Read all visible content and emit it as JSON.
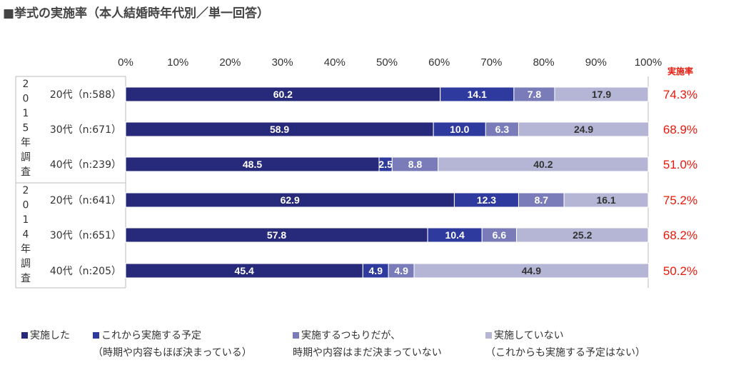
{
  "title": "■挙式の実施率（本人結婚時年代別／単一回答）",
  "rate_header": "実施率",
  "chart_data": {
    "type": "bar",
    "orientation": "horizontal",
    "stacked": true,
    "xlim": [
      0,
      100
    ],
    "ticks": [
      "0%",
      "10%",
      "20%",
      "30%",
      "40%",
      "50%",
      "60%",
      "70%",
      "80%",
      "90%",
      "100%"
    ],
    "groups": [
      {
        "label": [
          "2",
          "0",
          "1",
          "5",
          "年",
          "調",
          "査"
        ],
        "rows": [
          0,
          1,
          2
        ]
      },
      {
        "label": [
          "2",
          "0",
          "1",
          "4",
          "年",
          "調",
          "査"
        ],
        "rows": [
          3,
          4,
          5
        ]
      }
    ],
    "categories": [
      "20代（n:588）",
      "30代（n:671）",
      "40代（n:239）",
      "20代（n:641）",
      "30代（n:651）",
      "40代（n:205）"
    ],
    "series": [
      {
        "name": "実施した",
        "sub": "",
        "color": "#272a7a",
        "label_color": "#ffffff",
        "values": [
          60.2,
          58.9,
          48.5,
          62.9,
          57.8,
          45.4
        ]
      },
      {
        "name": "これから実施する予定",
        "sub": "（時期や内容もほぼ決まっている）",
        "color": "#2f3a9e",
        "label_color": "#ffffff",
        "values": [
          14.1,
          10.0,
          2.5,
          12.3,
          10.4,
          4.9
        ]
      },
      {
        "name": "実施するつもりだが、",
        "sub": "時期や内容はまだ決まっていない",
        "color": "#7a7cba",
        "label_color": "#ffffff",
        "values": [
          7.8,
          6.3,
          8.8,
          8.7,
          6.6,
          4.9
        ]
      },
      {
        "name": "実施していない",
        "sub": "（これからも実施する予定はない）",
        "color": "#b5b6d6",
        "label_color": "#333333",
        "values": [
          17.9,
          24.9,
          40.2,
          16.1,
          25.2,
          44.9
        ]
      }
    ],
    "segment_labels": [
      [
        "60.2",
        "14.1",
        "7.8",
        "17.9"
      ],
      [
        "58.9",
        "10.0",
        "6.3",
        "24.9"
      ],
      [
        "48.5",
        "2.5",
        "8.8",
        "40.2"
      ],
      [
        "62.9",
        "12.3",
        "8.7",
        "16.1"
      ],
      [
        "57.8",
        "10.4",
        "6.6",
        "25.2"
      ],
      [
        "45.4",
        "4.9",
        "4.9",
        "44.9"
      ]
    ],
    "rates": [
      "74.3%",
      "68.9%",
      "51.0%",
      "75.2%",
      "68.2%",
      "50.2%"
    ]
  }
}
